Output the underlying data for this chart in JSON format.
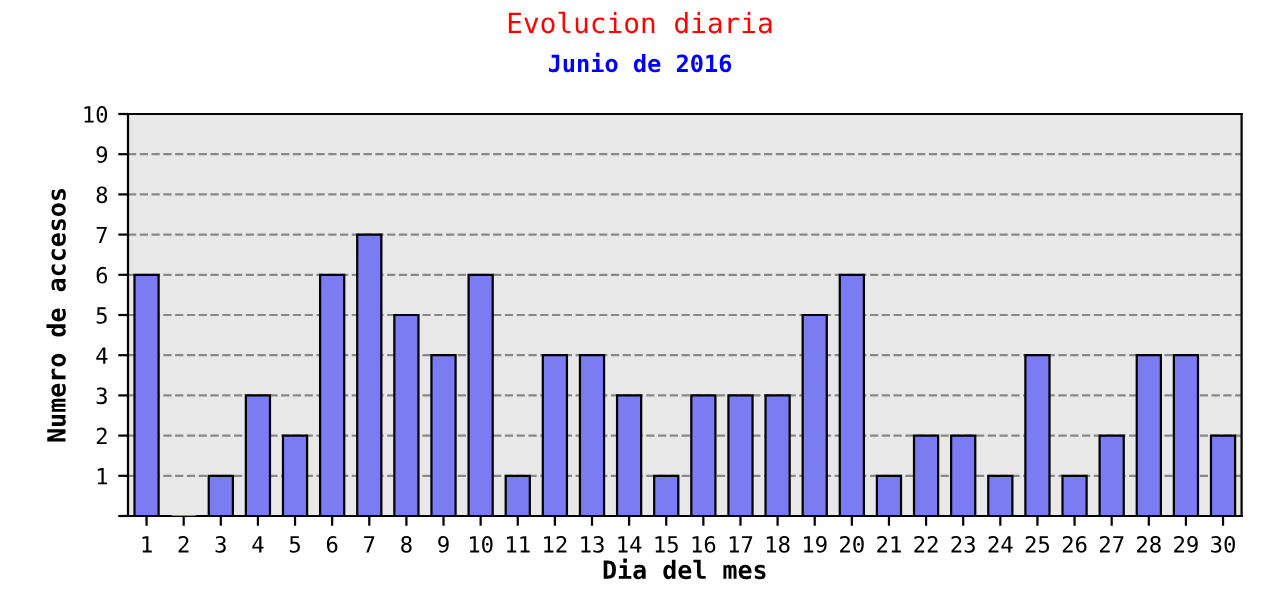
{
  "chart_data": {
    "type": "bar",
    "title": "Evolucion diaria",
    "subtitle": "Junio de 2016",
    "xlabel": "Dia del mes",
    "ylabel": "Numero de accesos",
    "categories": [
      "1",
      "2",
      "3",
      "4",
      "5",
      "6",
      "7",
      "8",
      "9",
      "10",
      "11",
      "12",
      "13",
      "14",
      "15",
      "16",
      "17",
      "18",
      "19",
      "20",
      "21",
      "22",
      "23",
      "24",
      "25",
      "26",
      "27",
      "28",
      "29",
      "30"
    ],
    "values": [
      6,
      0,
      1,
      3,
      2,
      6,
      7,
      5,
      4,
      6,
      1,
      4,
      4,
      3,
      1,
      3,
      3,
      3,
      5,
      6,
      1,
      2,
      2,
      1,
      4,
      1,
      2,
      4,
      4,
      2
    ],
    "color": "#7b7bf2",
    "ylim": [
      0,
      10
    ],
    "yticks": [
      {
        "value": 0,
        "label": null
      },
      1,
      2,
      3,
      4,
      5,
      6,
      7,
      8,
      9,
      10
    ],
    "grid": "y",
    "legend": false
  }
}
